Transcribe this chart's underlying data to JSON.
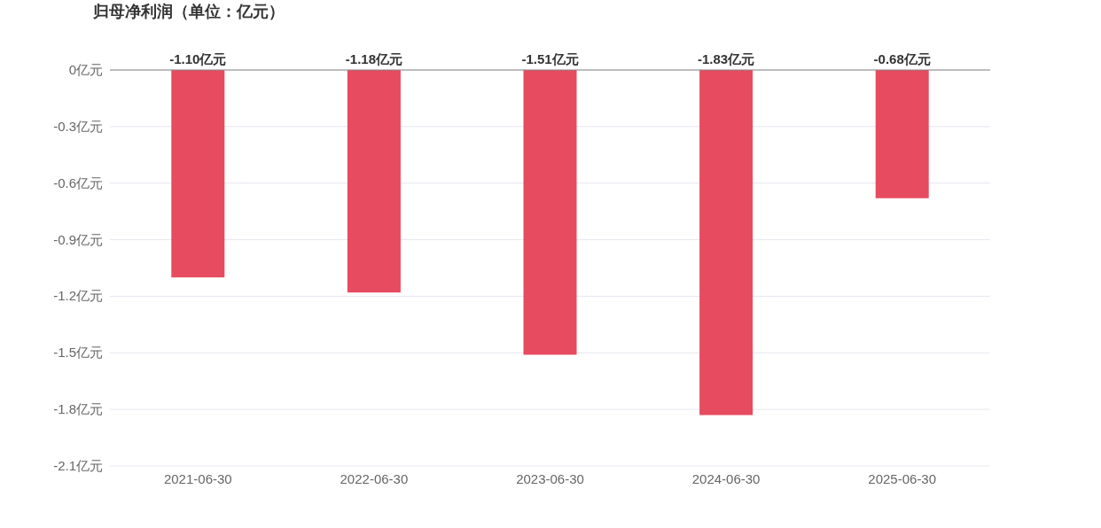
{
  "chart_data": {
    "type": "bar",
    "title": "归母净利润（单位：亿元）",
    "categories": [
      "2021-06-30",
      "2022-06-30",
      "2023-06-30",
      "2024-06-30",
      "2025-06-30"
    ],
    "values": [
      -1.1,
      -1.18,
      -1.51,
      -1.83,
      -0.68
    ],
    "value_labels": [
      "-1.10亿元",
      "-1.18亿元",
      "-1.51亿元",
      "-1.83亿元",
      "-0.68亿元"
    ],
    "color": "#e64b5f",
    "ylim": [
      -2.1,
      0
    ],
    "yticks": [
      {
        "value": 0,
        "label": "0亿元"
      },
      {
        "value": -0.3,
        "label": "-0.3亿元"
      },
      {
        "value": -0.6,
        "label": "-0.6亿元"
      },
      {
        "value": -0.9,
        "label": "-0.9亿元"
      },
      {
        "value": -1.2,
        "label": "-1.2亿元"
      },
      {
        "value": -1.5,
        "label": "-1.5亿元"
      },
      {
        "value": -1.8,
        "label": "-1.8亿元"
      },
      {
        "value": -2.1,
        "label": "-2.1亿元"
      }
    ],
    "grid": "y"
  }
}
